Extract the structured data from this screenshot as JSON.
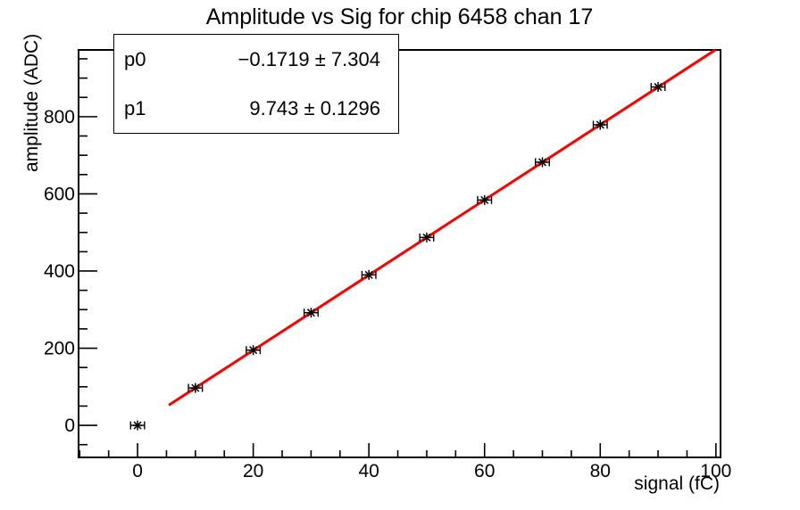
{
  "window": {
    "background_color": "#ffffff",
    "foreground_color": "#000000"
  },
  "stats": {
    "rows": [
      {
        "label": "p0",
        "value": "−0.1719 ± 7.304"
      },
      {
        "label": "p1",
        "value": "9.743 ± 0.1296"
      }
    ]
  },
  "chart_data": {
    "type": "scatter",
    "title": "Amplitude vs Sig for chip 6458 chan 17",
    "xlabel": "signal (fC)",
    "ylabel": "amplitude (ADC)",
    "xlim": [
      -10.2,
      100.8
    ],
    "ylim": [
      -83,
      973
    ],
    "x_ticks": [
      0,
      20,
      40,
      60,
      80,
      100
    ],
    "y_ticks": [
      0,
      200,
      400,
      600,
      800
    ],
    "x_minor_step": 5,
    "y_minor_step": 50,
    "grid": false,
    "points": {
      "marker": "star",
      "color": "#000000",
      "x_error": 1.2,
      "x": [
        0,
        10,
        20,
        30,
        40,
        50,
        60,
        70,
        80,
        90
      ],
      "y": [
        0,
        97,
        195,
        292,
        390,
        487,
        584,
        682,
        779,
        877
      ]
    },
    "fit": {
      "type": "linear",
      "p0": -0.1719,
      "p0_error": 7.304,
      "p1": 9.743,
      "p1_error": 0.1296,
      "draw_range": [
        5.4,
        99.9
      ],
      "color": "#ff0000",
      "line_width": 3
    },
    "legend_position": "stats box top-left"
  }
}
